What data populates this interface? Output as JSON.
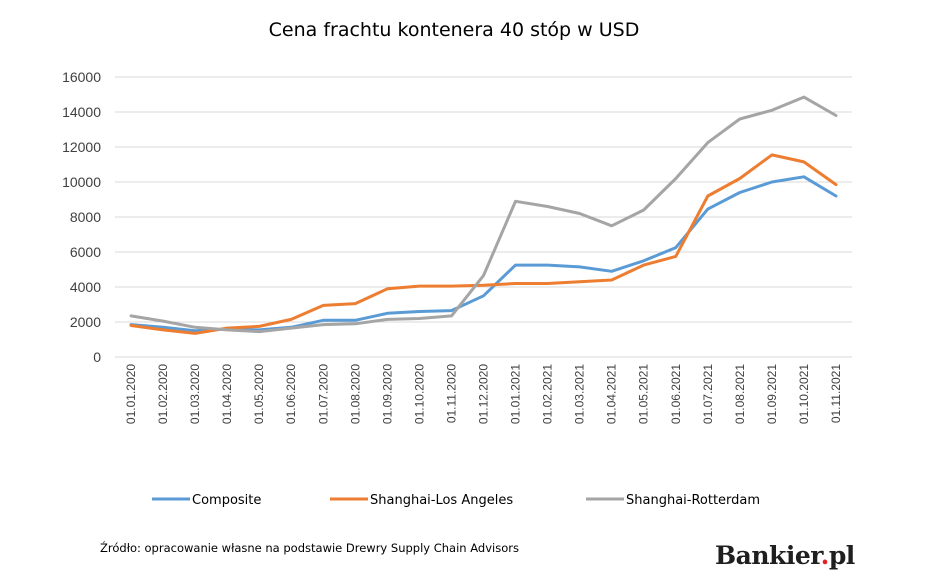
{
  "chart_data": {
    "type": "line",
    "title": "Cena frachtu kontenera 40 stóp w USD",
    "xlabel": "",
    "ylabel": "",
    "ylim": [
      0,
      16000
    ],
    "yticks": [
      0,
      2000,
      4000,
      6000,
      8000,
      10000,
      12000,
      14000,
      16000
    ],
    "grid": true,
    "legend_position": "bottom",
    "categories": [
      "01.01.2020",
      "01.02.2020",
      "01.03.2020",
      "01.04.2020",
      "01.05.2020",
      "01.06.2020",
      "01.07.2020",
      "01.08.2020",
      "01.09.2020",
      "01.10.2020",
      "01.11.2020",
      "01.12.2020",
      "01.01.2021",
      "01.02.2021",
      "01.03.2021",
      "01.04.2021",
      "01.05.2021",
      "01.06.2021",
      "01.07.2021",
      "01.08.2021",
      "01.09.2021",
      "01.10.2021",
      "01.11.2021"
    ],
    "series": [
      {
        "name": "Composite",
        "color": "#5b9bd5",
        "values": [
          1850,
          1700,
          1500,
          1600,
          1550,
          1700,
          2100,
          2100,
          2500,
          2600,
          2650,
          3500,
          5250,
          5250,
          5150,
          4900,
          5500,
          6250,
          8450,
          9400,
          10000,
          10300,
          9200
        ]
      },
      {
        "name": "Shanghai-Los Angeles",
        "color": "#ed7d31",
        "values": [
          1800,
          1550,
          1350,
          1650,
          1750,
          2150,
          2950,
          3050,
          3900,
          4050,
          4050,
          4100,
          4200,
          4200,
          4300,
          4400,
          5250,
          5750,
          9200,
          10200,
          11550,
          11150,
          9850
        ]
      },
      {
        "name": "Shanghai-Rotterdam",
        "color": "#a5a5a5",
        "values": [
          2350,
          2050,
          1700,
          1550,
          1450,
          1650,
          1850,
          1900,
          2150,
          2200,
          2350,
          4650,
          8900,
          8600,
          8200,
          7500,
          8400,
          10200,
          12250,
          13600,
          14100,
          14850,
          13800
        ]
      }
    ]
  },
  "source": "Źródło: opracowanie własne na podstawie Drewry Supply Chain Advisors",
  "logo": {
    "main": "Bankier",
    "dot": ".",
    "suffix": "pl"
  }
}
